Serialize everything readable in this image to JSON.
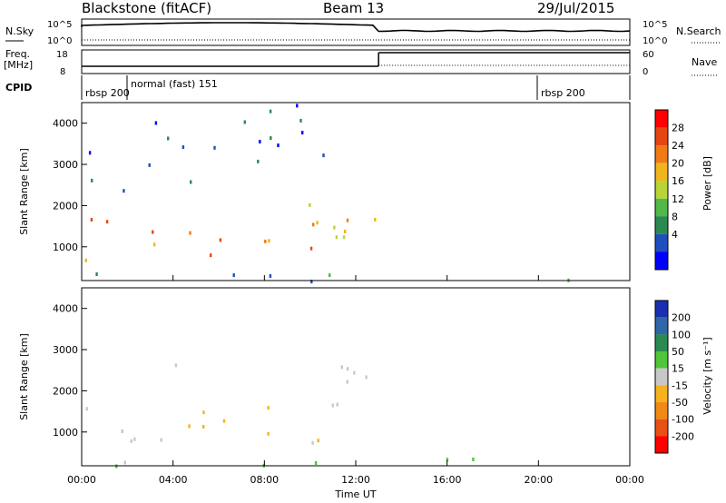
{
  "header": {
    "title": "Blackstone (fitACF)",
    "beam": "Beam 13",
    "date": "29/Jul/2015"
  },
  "top_panels": {
    "nsky_label": "N.Sky",
    "nsearch_label": "N.Search",
    "freq_label_line1": "Freq.",
    "freq_label_line2": "[MHz]",
    "nave_label": "Nave",
    "cpid_label": "CPID",
    "nsky_ticks": [
      "10^5",
      "10^0"
    ],
    "nsearch_ticks": [
      "10^5",
      "10^0"
    ],
    "freq_ticks": [
      "18",
      "8"
    ],
    "nave_ticks": [
      "60",
      "0"
    ],
    "cpid_segments": [
      {
        "label": "rbsp 200",
        "start_hour": 0
      },
      {
        "label": "normal (fast) 151",
        "start_hour": 2
      },
      {
        "label": "rbsp 200",
        "start_hour": 20
      }
    ]
  },
  "chart_data": [
    {
      "type": "heatmap",
      "name": "power",
      "xlabel": "Time UT",
      "ylabel": "Slant Range [km]",
      "xlim_hours": [
        0,
        24
      ],
      "ylim": [
        180,
        4500
      ],
      "x_ticks": [
        "00:00",
        "04:00",
        "08:00",
        "12:00",
        "16:00",
        "20:00",
        "00:00"
      ],
      "y_ticks": [
        1000,
        2000,
        3000,
        4000
      ],
      "colorbar_label": "Power [dB]",
      "colorbar_ticks": [
        4,
        8,
        12,
        16,
        20,
        24,
        28
      ],
      "colorbar_colors": [
        "#0000ff",
        "#1f4fbf",
        "#2a8a50",
        "#52b84a",
        "#b8d436",
        "#f0b41e",
        "#f07a14",
        "#e64614",
        "#ff0000"
      ],
      "regions": [
        {
          "t0": 0.0,
          "t1": 4.0,
          "r0": 700,
          "r1": 1900,
          "level": 20
        },
        {
          "t0": 1.5,
          "t1": 3.5,
          "r0": 2300,
          "r1": 2600,
          "level": 6
        },
        {
          "t0": 0.0,
          "t1": 1.5,
          "r0": 2500,
          "r1": 3400,
          "level": 5
        },
        {
          "t0": 3.8,
          "t1": 4.8,
          "r0": 1400,
          "r1": 2700,
          "level": 9
        },
        {
          "t0": 4.0,
          "t1": 10.6,
          "r0": 650,
          "r1": 1700,
          "level": 22
        },
        {
          "t0": 9.5,
          "t1": 13.0,
          "r0": 1100,
          "r1": 2900,
          "level": 16
        },
        {
          "t0": 2.5,
          "t1": 11.5,
          "r0": 3000,
          "r1": 4500,
          "level": 4
        },
        {
          "t0": 0.0,
          "t1": 24.0,
          "r0": 180,
          "r1": 400,
          "level": 8
        }
      ]
    },
    {
      "type": "heatmap",
      "name": "velocity",
      "xlabel": "Time UT",
      "ylabel": "Slant Range [km]",
      "xlim_hours": [
        0,
        24
      ],
      "ylim": [
        180,
        4500
      ],
      "x_ticks": [
        "00:00",
        "04:00",
        "08:00",
        "12:00",
        "16:00",
        "20:00",
        "00:00"
      ],
      "y_ticks": [
        1000,
        2000,
        3000,
        4000
      ],
      "colorbar_label": "Velocity [m s⁻¹]",
      "colorbar_ticks": [
        200,
        100,
        50,
        15,
        -15,
        -50,
        -100,
        -200
      ],
      "colorbar_colors": [
        "#1a2fb0",
        "#2f66a8",
        "#2a8a50",
        "#52c43a",
        "#c8c8c8",
        "#f5b21e",
        "#f08a14",
        "#e85014",
        "#ff0000"
      ],
      "regions": [
        {
          "t0": 0.0,
          "t1": 4.0,
          "r0": 700,
          "r1": 1900,
          "value": 0
        },
        {
          "t0": 4.0,
          "t1": 10.6,
          "r0": 650,
          "r1": 1700,
          "value": -30
        },
        {
          "t0": 9.5,
          "t1": 13.0,
          "r0": 1100,
          "r1": 2900,
          "value": 0
        },
        {
          "t0": 3.8,
          "t1": 4.8,
          "r0": 1400,
          "r1": 2700,
          "value": 0
        },
        {
          "t0": 0.0,
          "t1": 24.0,
          "r0": 180,
          "r1": 400,
          "value": 30
        }
      ]
    }
  ]
}
